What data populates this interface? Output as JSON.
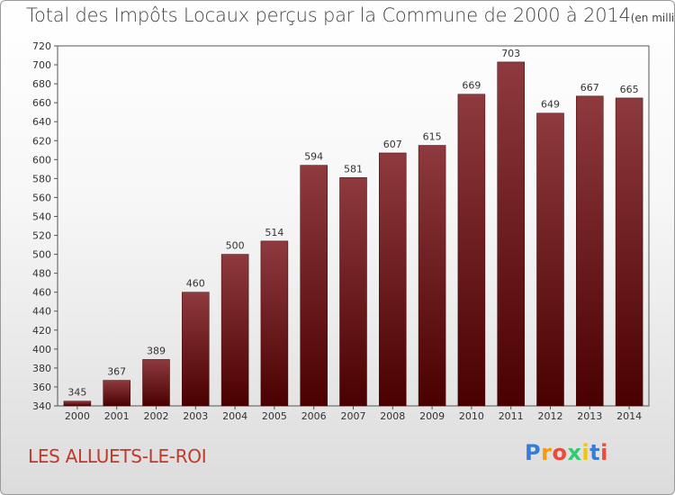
{
  "title": "Total des Impôts Locaux perçus par la Commune de 2000 à 2014",
  "unit_note": "(en milliers d'€)",
  "commune": "LES ALLUETS-LE-ROI",
  "logo": {
    "letters": [
      "P",
      "r",
      "o",
      "x",
      "i",
      "t",
      "i"
    ],
    "colors": [
      "#3a7bd5",
      "#f39c12",
      "#e74c3c",
      "#2ecc71",
      "#f1c40f",
      "#3a7bd5",
      "#e74c3c"
    ]
  },
  "colors": {
    "bar_top": "#8e3a3e",
    "bar_bottom": "#4a0000",
    "title": "#444444",
    "commune": "#c0392b"
  },
  "chart_data": {
    "type": "bar",
    "title": "Total des Impôts Locaux perçus par la Commune de 2000 à 2014",
    "categories": [
      "2000",
      "2001",
      "2002",
      "2003",
      "2004",
      "2005",
      "2006",
      "2007",
      "2008",
      "2009",
      "2010",
      "2011",
      "2012",
      "2013",
      "2014"
    ],
    "values": [
      345,
      367,
      389,
      460,
      500,
      514,
      594,
      581,
      607,
      615,
      669,
      703,
      649,
      667,
      665
    ],
    "ylim": [
      340,
      720
    ],
    "yticks": [
      340,
      360,
      380,
      400,
      420,
      440,
      460,
      480,
      500,
      520,
      540,
      560,
      580,
      600,
      620,
      640,
      660,
      680,
      700,
      720
    ],
    "grid": false,
    "data_labels": true
  }
}
